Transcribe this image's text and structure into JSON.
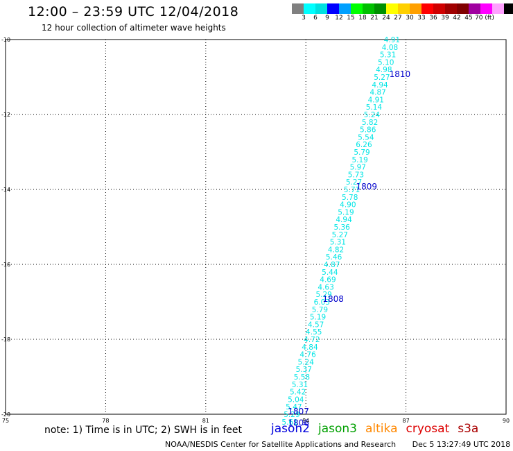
{
  "header": {
    "title": "12:00 – 23:59 UTC 12/04/2018",
    "subtitle": "12 hour collection of altimeter wave heights"
  },
  "color_scale": {
    "colors": [
      "#808080",
      "#00ffff",
      "#00e0e0",
      "#0000ff",
      "#00a0ff",
      "#00ff00",
      "#00c000",
      "#009000",
      "#ffff00",
      "#ffd000",
      "#ffa000",
      "#ff0000",
      "#d00000",
      "#a00000",
      "#800000",
      "#a000a0",
      "#ff00ff",
      "#ffa0ff",
      "#000000"
    ],
    "labels": [
      "3",
      "6",
      "9",
      "12",
      "15",
      "18",
      "21",
      "24",
      "27",
      "30",
      "33",
      "36",
      "39",
      "42",
      "45",
      "70 (ft)"
    ]
  },
  "note": "note: 1) Time is in UTC; 2) SWH is in feet",
  "missions": [
    {
      "name": "jason2",
      "color": "#0000dd"
    },
    {
      "name": "jason3",
      "color": "#00a000"
    },
    {
      "name": "altika",
      "color": "#ff8800"
    },
    {
      "name": "cryosat",
      "color": "#dd0000"
    },
    {
      "name": "s3a",
      "color": "#aa0000"
    }
  ],
  "footer": {
    "credit": "NOAA/NESDIS Center for Satellite Applications and Research",
    "timestamp": "Dec  5 13:27:49 UTC 2018"
  },
  "chart_data": {
    "type": "scatter",
    "x_ticks": [
      "75",
      "78",
      "81",
      "84",
      "87",
      "90"
    ],
    "y_ticks": [
      "-10",
      "-12",
      "-14",
      "-16",
      "-18",
      "-20"
    ],
    "xlim": [
      75,
      90
    ],
    "ylim": [
      -20,
      -10
    ],
    "grid": true,
    "value_color": "#00e5e5",
    "time_color": "#0000cc",
    "values": [
      {
        "lon": 86.58,
        "lat": -10.0,
        "v": "4.91"
      },
      {
        "lon": 86.52,
        "lat": -10.2,
        "v": "4.08"
      },
      {
        "lon": 86.46,
        "lat": -10.4,
        "v": "5.31"
      },
      {
        "lon": 86.4,
        "lat": -10.6,
        "v": "5.10"
      },
      {
        "lon": 86.34,
        "lat": -10.8,
        "v": "4.98"
      },
      {
        "lon": 86.28,
        "lat": -11.0,
        "v": "5.27"
      },
      {
        "lon": 86.22,
        "lat": -11.2,
        "v": "4.94"
      },
      {
        "lon": 86.16,
        "lat": -11.4,
        "v": "4.87"
      },
      {
        "lon": 86.1,
        "lat": -11.6,
        "v": "4.91"
      },
      {
        "lon": 86.04,
        "lat": -11.8,
        "v": "5.14"
      },
      {
        "lon": 85.98,
        "lat": -12.0,
        "v": "5.24"
      },
      {
        "lon": 85.92,
        "lat": -12.2,
        "v": "5.82"
      },
      {
        "lon": 85.86,
        "lat": -12.4,
        "v": "5.86"
      },
      {
        "lon": 85.8,
        "lat": -12.6,
        "v": "5.54"
      },
      {
        "lon": 85.74,
        "lat": -12.8,
        "v": "6.26"
      },
      {
        "lon": 85.68,
        "lat": -13.0,
        "v": "5.79"
      },
      {
        "lon": 85.62,
        "lat": -13.2,
        "v": "5.19"
      },
      {
        "lon": 85.56,
        "lat": -13.4,
        "v": "5.97"
      },
      {
        "lon": 85.5,
        "lat": -13.6,
        "v": "5.73"
      },
      {
        "lon": 85.44,
        "lat": -13.8,
        "v": "5.27"
      },
      {
        "lon": 85.38,
        "lat": -14.0,
        "v": "5.71"
      },
      {
        "lon": 85.32,
        "lat": -14.2,
        "v": "5.78"
      },
      {
        "lon": 85.26,
        "lat": -14.4,
        "v": "4.90"
      },
      {
        "lon": 85.2,
        "lat": -14.6,
        "v": "5.19"
      },
      {
        "lon": 85.14,
        "lat": -14.8,
        "v": "4.94"
      },
      {
        "lon": 85.08,
        "lat": -15.0,
        "v": "5.36"
      },
      {
        "lon": 85.02,
        "lat": -15.2,
        "v": "5.27"
      },
      {
        "lon": 84.96,
        "lat": -15.4,
        "v": "5.31"
      },
      {
        "lon": 84.9,
        "lat": -15.6,
        "v": "4.82"
      },
      {
        "lon": 84.84,
        "lat": -15.8,
        "v": "5.46"
      },
      {
        "lon": 84.78,
        "lat": -16.0,
        "v": "4.87"
      },
      {
        "lon": 84.72,
        "lat": -16.2,
        "v": "5.44"
      },
      {
        "lon": 84.66,
        "lat": -16.4,
        "v": "4.69"
      },
      {
        "lon": 84.6,
        "lat": -16.6,
        "v": "4.63"
      },
      {
        "lon": 84.54,
        "lat": -16.8,
        "v": "5.29"
      },
      {
        "lon": 84.48,
        "lat": -17.0,
        "v": "6.03"
      },
      {
        "lon": 84.42,
        "lat": -17.2,
        "v": "5.79"
      },
      {
        "lon": 84.36,
        "lat": -17.4,
        "v": "5.19"
      },
      {
        "lon": 84.3,
        "lat": -17.6,
        "v": "4.57"
      },
      {
        "lon": 84.24,
        "lat": -17.8,
        "v": "4.55"
      },
      {
        "lon": 84.18,
        "lat": -18.0,
        "v": "4.72"
      },
      {
        "lon": 84.12,
        "lat": -18.2,
        "v": "4.84"
      },
      {
        "lon": 84.06,
        "lat": -18.4,
        "v": "4.76"
      },
      {
        "lon": 84.0,
        "lat": -18.6,
        "v": "5.24"
      },
      {
        "lon": 83.94,
        "lat": -18.8,
        "v": "5.37"
      },
      {
        "lon": 83.88,
        "lat": -19.0,
        "v": "5.58"
      },
      {
        "lon": 83.82,
        "lat": -19.2,
        "v": "5.31"
      },
      {
        "lon": 83.76,
        "lat": -19.4,
        "v": "5.42"
      },
      {
        "lon": 83.7,
        "lat": -19.6,
        "v": "5.04"
      },
      {
        "lon": 83.64,
        "lat": -19.8,
        "v": "5.47"
      },
      {
        "lon": 83.58,
        "lat": -20.0,
        "v": "5.29"
      },
      {
        "lon": 83.52,
        "lat": -20.2,
        "v": "5.61"
      }
    ],
    "times": [
      {
        "lon": 86.82,
        "lat": -10.93,
        "t": "1810"
      },
      {
        "lon": 85.82,
        "lat": -13.93,
        "t": "1809"
      },
      {
        "lon": 84.82,
        "lat": -16.93,
        "t": "1808"
      },
      {
        "lon": 83.78,
        "lat": -19.93,
        "t": "1807"
      },
      {
        "lon": 83.78,
        "lat": -20.23,
        "t": "1806"
      }
    ]
  }
}
